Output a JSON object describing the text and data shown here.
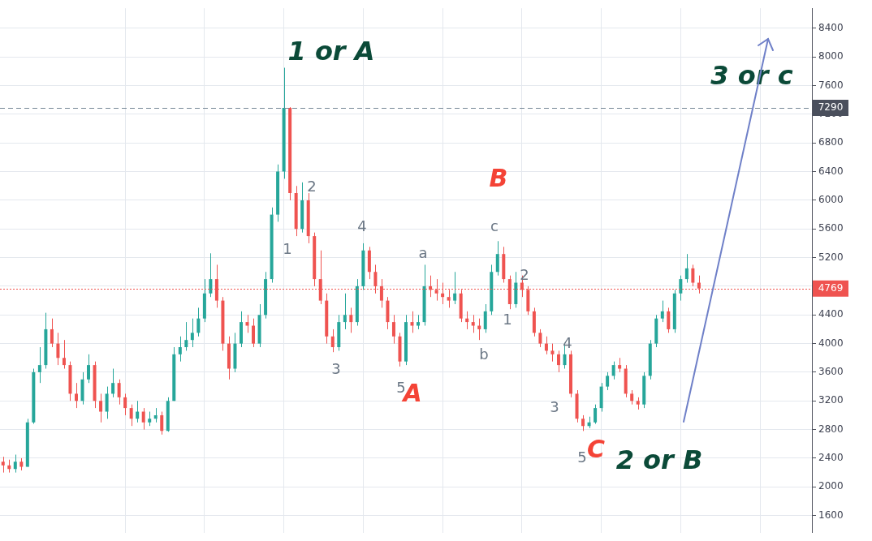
{
  "chart_data": {
    "type": "candlestick",
    "categories": [
      null,
      null,
      null,
      null,
      null,
      null,
      null,
      null,
      null,
      null,
      null,
      null,
      null,
      null,
      null,
      null,
      null,
      null,
      null,
      null,
      null,
      null,
      null,
      null,
      null,
      null,
      null,
      null,
      null,
      null,
      null,
      null,
      null,
      null,
      null,
      null,
      null,
      null,
      null,
      null,
      null,
      null,
      null,
      null,
      null,
      null,
      null,
      null,
      null,
      null,
      null,
      null,
      null,
      null,
      null,
      null,
      null,
      null,
      null,
      null,
      null,
      null,
      null,
      null,
      null,
      null,
      null,
      null,
      null,
      null,
      null,
      null,
      null,
      null,
      null,
      null,
      null,
      null,
      null,
      null,
      null,
      null,
      null,
      null,
      null,
      null,
      null,
      null,
      null,
      null,
      null,
      null,
      null,
      null,
      null,
      null,
      null,
      null,
      null,
      null,
      null,
      null,
      null,
      null,
      null,
      null,
      null,
      null,
      null,
      null,
      null,
      null,
      null,
      null,
      null,
      null,
      null,
      null,
      null,
      null,
      null,
      null,
      null,
      null,
      null,
      null,
      null,
      null,
      null,
      null,
      null,
      null,
      null
    ],
    "ohlc": [
      [
        2350,
        2420,
        2200,
        2300
      ],
      [
        2300,
        2380,
        2200,
        2250
      ],
      [
        2250,
        2450,
        2200,
        2350
      ],
      [
        2350,
        2400,
        2230,
        2280
      ],
      [
        2280,
        2950,
        2280,
        2900
      ],
      [
        2900,
        3650,
        2880,
        3600
      ],
      [
        3600,
        3950,
        3450,
        3700
      ],
      [
        3700,
        4430,
        3650,
        4200
      ],
      [
        4200,
        4350,
        3950,
        4000
      ],
      [
        4000,
        4150,
        3700,
        3800
      ],
      [
        3800,
        4050,
        3650,
        3700
      ],
      [
        3700,
        3750,
        3200,
        3300
      ],
      [
        3300,
        3450,
        3100,
        3200
      ],
      [
        3200,
        3600,
        3150,
        3500
      ],
      [
        3500,
        3850,
        3450,
        3700
      ],
      [
        3700,
        3750,
        3100,
        3200
      ],
      [
        3200,
        3300,
        2900,
        3050
      ],
      [
        3050,
        3400,
        2950,
        3300
      ],
      [
        3300,
        3650,
        3250,
        3450
      ],
      [
        3450,
        3500,
        3150,
        3250
      ],
      [
        3250,
        3300,
        3000,
        3100
      ],
      [
        3100,
        3150,
        2850,
        2950
      ],
      [
        2950,
        3200,
        2900,
        3050
      ],
      [
        3050,
        3100,
        2800,
        2900
      ],
      [
        2900,
        3050,
        2850,
        2950
      ],
      [
        2950,
        3100,
        2900,
        3000
      ],
      [
        3000,
        3050,
        2730,
        2780
      ],
      [
        2780,
        3250,
        2770,
        3200
      ],
      [
        3200,
        3950,
        3200,
        3850
      ],
      [
        3850,
        4100,
        3750,
        3950
      ],
      [
        3950,
        4300,
        3900,
        4050
      ],
      [
        4050,
        4350,
        3950,
        4150
      ],
      [
        4150,
        4500,
        4100,
        4350
      ],
      [
        4350,
        4900,
        4300,
        4700
      ],
      [
        4700,
        5260,
        4650,
        4900
      ],
      [
        4900,
        5100,
        4500,
        4600
      ],
      [
        4600,
        4650,
        3900,
        4000
      ],
      [
        4000,
        4100,
        3500,
        3650
      ],
      [
        3650,
        4150,
        3600,
        4000
      ],
      [
        4000,
        4450,
        3950,
        4300
      ],
      [
        4300,
        4400,
        4150,
        4250
      ],
      [
        4250,
        4350,
        3950,
        4000
      ],
      [
        4000,
        4550,
        3950,
        4400
      ],
      [
        4400,
        5000,
        4350,
        4900
      ],
      [
        4900,
        5900,
        4850,
        5800
      ],
      [
        5800,
        6500,
        5700,
        6400
      ],
      [
        6400,
        7850,
        6300,
        7290
      ],
      [
        7290,
        7300,
        6000,
        6100
      ],
      [
        6100,
        6200,
        5500,
        5600
      ],
      [
        5600,
        6250,
        5550,
        6000
      ],
      [
        6000,
        6100,
        5400,
        5500
      ],
      [
        5500,
        5550,
        4800,
        4900
      ],
      [
        4900,
        5300,
        4550,
        4600
      ],
      [
        4600,
        4700,
        4000,
        4100
      ],
      [
        4100,
        4200,
        3880,
        3950
      ],
      [
        3950,
        4400,
        3900,
        4300
      ],
      [
        4300,
        4700,
        4200,
        4400
      ],
      [
        4400,
        4500,
        4150,
        4300
      ],
      [
        4300,
        4900,
        4250,
        4800
      ],
      [
        4800,
        5400,
        4750,
        5300
      ],
      [
        5300,
        5350,
        4900,
        5000
      ],
      [
        5000,
        5100,
        4700,
        4800
      ],
      [
        4800,
        4900,
        4500,
        4600
      ],
      [
        4600,
        4650,
        4200,
        4300
      ],
      [
        4300,
        4400,
        4000,
        4100
      ],
      [
        4100,
        4150,
        3680,
        3750
      ],
      [
        3750,
        4400,
        3700,
        4300
      ],
      [
        4300,
        4450,
        4150,
        4250
      ],
      [
        4250,
        4400,
        4200,
        4300
      ],
      [
        4300,
        5100,
        4250,
        4800
      ],
      [
        4800,
        4950,
        4650,
        4750
      ],
      [
        4750,
        4900,
        4600,
        4700
      ],
      [
        4700,
        4850,
        4550,
        4650
      ],
      [
        4650,
        4750,
        4500,
        4600
      ],
      [
        4600,
        5000,
        4550,
        4700
      ],
      [
        4700,
        4750,
        4300,
        4350
      ],
      [
        4350,
        4450,
        4200,
        4300
      ],
      [
        4300,
        4400,
        4150,
        4250
      ],
      [
        4250,
        4350,
        4050,
        4200
      ],
      [
        4200,
        4550,
        4150,
        4450
      ],
      [
        4450,
        5100,
        4400,
        5000
      ],
      [
        5000,
        5430,
        4950,
        5250
      ],
      [
        5250,
        5350,
        4850,
        4900
      ],
      [
        4900,
        4950,
        4480,
        4550
      ],
      [
        4550,
        5000,
        4500,
        4850
      ],
      [
        4850,
        4950,
        4650,
        4750
      ],
      [
        4750,
        4800,
        4400,
        4450
      ],
      [
        4450,
        4500,
        4100,
        4150
      ],
      [
        4150,
        4200,
        3950,
        4000
      ],
      [
        4000,
        4100,
        3850,
        3900
      ],
      [
        3900,
        4000,
        3750,
        3850
      ],
      [
        3850,
        3900,
        3600,
        3700
      ],
      [
        3700,
        4010,
        3650,
        3850
      ],
      [
        3850,
        3900,
        3250,
        3300
      ],
      [
        3300,
        3350,
        2900,
        2950
      ],
      [
        2950,
        3000,
        2780,
        2850
      ],
      [
        2850,
        2980,
        2820,
        2900
      ],
      [
        2900,
        3150,
        2880,
        3100
      ],
      [
        3100,
        3450,
        3050,
        3400
      ],
      [
        3400,
        3600,
        3350,
        3550
      ],
      [
        3550,
        3750,
        3500,
        3700
      ],
      [
        3700,
        3800,
        3600,
        3650
      ],
      [
        3650,
        3700,
        3250,
        3300
      ],
      [
        3300,
        3350,
        3150,
        3200
      ],
      [
        3200,
        3250,
        3080,
        3150
      ],
      [
        3150,
        3600,
        3100,
        3550
      ],
      [
        3550,
        4050,
        3500,
        4000
      ],
      [
        4000,
        4400,
        3950,
        4350
      ],
      [
        4350,
        4600,
        4300,
        4450
      ],
      [
        4450,
        4500,
        4150,
        4200
      ],
      [
        4200,
        4750,
        4150,
        4700
      ],
      [
        4700,
        4950,
        4600,
        4900
      ],
      [
        4900,
        5250,
        4850,
        5050
      ],
      [
        5050,
        5100,
        4800,
        4850
      ],
      [
        4850,
        4950,
        4700,
        4769
      ],
      null,
      null,
      null,
      null,
      null,
      null,
      null,
      null,
      null,
      null,
      null,
      null,
      null,
      null,
      null,
      null,
      null,
      null
    ],
    "colors": [
      "#ef5350",
      "#ef5350",
      "#26a69a",
      "#ef5350",
      "#26a69a",
      "#26a69a",
      "#26a69a",
      "#26a69a",
      "#ef5350",
      "#ef5350",
      "#ef5350",
      "#ef5350",
      "#ef5350",
      "#26a69a",
      "#26a69a",
      "#ef5350",
      "#ef5350",
      "#26a69a",
      "#26a69a",
      "#ef5350",
      "#ef5350",
      "#ef5350",
      "#26a69a",
      "#ef5350",
      "#26a69a",
      "#26a69a",
      "#ef5350",
      "#26a69a",
      "#26a69a",
      "#26a69a",
      "#26a69a",
      "#26a69a",
      "#26a69a",
      "#26a69a",
      "#26a69a",
      "#ef5350",
      "#ef5350",
      "#ef5350",
      "#26a69a",
      "#26a69a",
      "#ef5350",
      "#ef5350",
      "#26a69a",
      "#26a69a",
      "#26a69a",
      "#26a69a",
      "#26a69a",
      "#ef5350",
      "#ef5350",
      "#26a69a",
      "#ef5350",
      "#ef5350",
      "#ef5350",
      "#ef5350",
      "#ef5350",
      "#26a69a",
      "#26a69a",
      "#ef5350",
      "#26a69a",
      "#26a69a",
      "#ef5350",
      "#ef5350",
      "#ef5350",
      "#ef5350",
      "#ef5350",
      "#ef5350",
      "#26a69a",
      "#ef5350",
      "#26a69a",
      "#26a69a",
      "#ef5350",
      "#ef5350",
      "#ef5350",
      "#ef5350",
      "#26a69a",
      "#ef5350",
      "#ef5350",
      "#ef5350",
      "#ef5350",
      "#26a69a",
      "#26a69a",
      "#26a69a",
      "#ef5350",
      "#ef5350",
      "#26a69a",
      "#ef5350",
      "#ef5350",
      "#ef5350",
      "#ef5350",
      "#ef5350",
      "#ef5350",
      "#ef5350",
      "#26a69a",
      "#ef5350",
      "#ef5350",
      "#ef5350",
      "#26a69a",
      "#26a69a",
      "#26a69a",
      "#26a69a",
      "#26a69a",
      "#ef5350",
      "#ef5350",
      "#ef5350",
      "#ef5350",
      "#26a69a",
      "#26a69a",
      "#26a69a",
      "#26a69a",
      "#ef5350",
      "#26a69a",
      "#26a69a",
      "#26a69a",
      "#ef5350",
      "#ef5350",
      null,
      null,
      null,
      null,
      null,
      null,
      null,
      null,
      null,
      null,
      null,
      null,
      null,
      null,
      null,
      null,
      null,
      null
    ],
    "ylim": [
      1360,
      8680
    ],
    "yticks": [
      1600,
      2000,
      2400,
      2800,
      3200,
      3600,
      4000,
      4400,
      {
        "value": 4800,
        "label": null
      },
      5200,
      5600,
      6000,
      6400,
      6800,
      7200,
      7600,
      8000,
      8400
    ],
    "grid": true,
    "tick_labels": "y",
    "ref_lines": [
      {
        "axis": "y",
        "value": 7290,
        "label": "7290",
        "color": "#758696",
        "line_style": "dashed"
      },
      {
        "axis": "y",
        "value": 4769,
        "label": "4769",
        "color": "#ef5350",
        "line_style": "dotted"
      }
    ],
    "annotations": [
      "1 or A",
      "3 or c",
      "2 or B",
      "A",
      "B",
      "C",
      "2",
      "1",
      "4",
      "3",
      "5",
      "a",
      "c",
      "b",
      "1",
      "2",
      "4",
      "3",
      "5"
    ]
  }
}
